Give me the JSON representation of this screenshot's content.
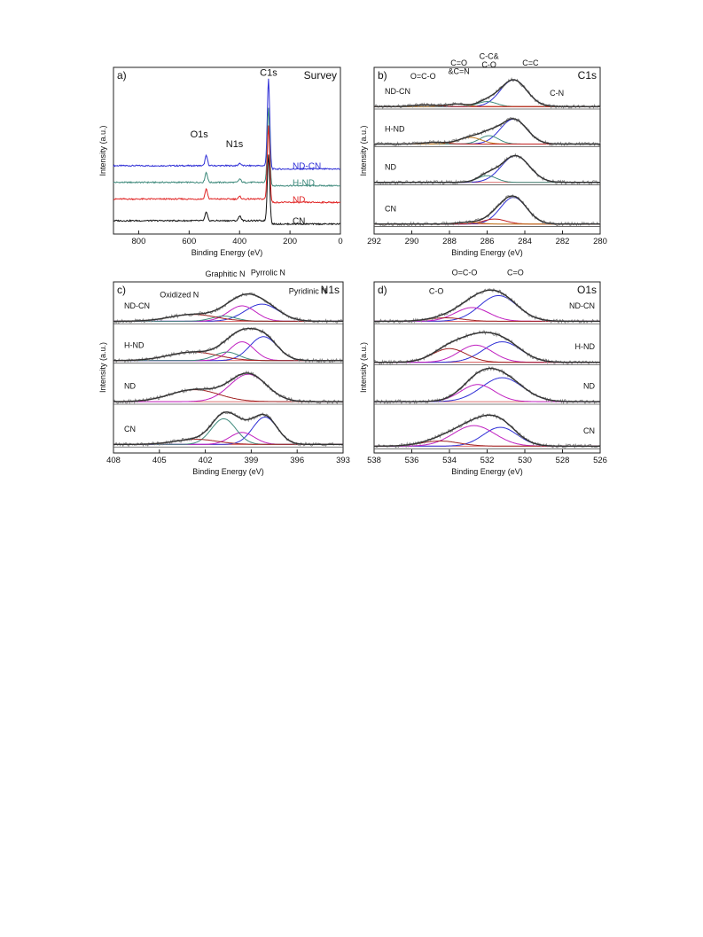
{
  "chart_data": [
    {
      "id": "a",
      "type": "line",
      "panel_label": "a)",
      "title": "Survey",
      "xlabel": "Binding Energy (eV)",
      "ylabel": "Intensity (a.u.)",
      "xlim": [
        900,
        0
      ],
      "x_ticks": [
        "800",
        "600",
        "400",
        "200",
        "0"
      ],
      "x_tick_values": [
        800,
        600,
        400,
        200,
        0
      ],
      "ylim": [
        0,
        1
      ],
      "peak_labels": [
        {
          "text": "C1s",
          "x": 285,
          "y": 0.95
        },
        {
          "text": "O1s",
          "x": 560,
          "y": 0.58
        },
        {
          "text": "N1s",
          "x": 420,
          "y": 0.52
        }
      ],
      "series": [
        {
          "name": "ND-CN",
          "color": "#2f2fd6",
          "baseline": 0.41,
          "slope": 0.012,
          "peaks": [
            {
              "x": 532,
              "h": 0.06,
              "w": 3
            },
            {
              "x": 399,
              "h": 0.015,
              "w": 3
            },
            {
              "x": 285,
              "h": 0.52,
              "w": 3
            }
          ],
          "label_x": 190,
          "label_y": 0.39
        },
        {
          "name": "H-ND",
          "color": "#3f8a7c",
          "baseline": 0.31,
          "slope": 0.012,
          "peaks": [
            {
              "x": 532,
              "h": 0.06,
              "w": 3
            },
            {
              "x": 399,
              "h": 0.02,
              "w": 3
            },
            {
              "x": 285,
              "h": 0.45,
              "w": 3
            }
          ],
          "label_x": 190,
          "label_y": 0.29
        },
        {
          "name": "ND",
          "color": "#e02424",
          "baseline": 0.21,
          "slope": 0.012,
          "peaks": [
            {
              "x": 532,
              "h": 0.06,
              "w": 3
            },
            {
              "x": 399,
              "h": 0.015,
              "w": 3
            },
            {
              "x": 285,
              "h": 0.44,
              "w": 3
            }
          ],
          "label_x": 190,
          "label_y": 0.19
        },
        {
          "name": "CN",
          "color": "#111111",
          "baseline": 0.08,
          "slope": 0.012,
          "peaks": [
            {
              "x": 532,
              "h": 0.05,
              "w": 3
            },
            {
              "x": 399,
              "h": 0.03,
              "w": 3
            },
            {
              "x": 285,
              "h": 0.4,
              "w": 3
            }
          ],
          "label_x": 190,
          "label_y": 0.06
        }
      ]
    },
    {
      "id": "b",
      "type": "line",
      "panel_label": "b)",
      "title": "C1s",
      "xlabel": "Binding Energy (eV)",
      "ylabel": "Intensity (a.u.)",
      "xlim": [
        292,
        280
      ],
      "x_ticks": [
        "292",
        "290",
        "288",
        "286",
        "284",
        "282",
        "280"
      ],
      "x_tick_values": [
        292,
        290,
        288,
        286,
        284,
        282,
        280
      ],
      "ylim": [
        0,
        1
      ],
      "peak_labels": [
        {
          "text": "O=C-O",
          "x": 289.4,
          "y": 0.93
        },
        {
          "text": "C=O",
          "x": 287.5,
          "y": 1.01
        },
        {
          "text": "&C=N",
          "x": 287.5,
          "y": 0.96
        },
        {
          "text": "C-C&",
          "x": 285.9,
          "y": 1.05
        },
        {
          "text": "C-O",
          "x": 285.9,
          "y": 1.0
        },
        {
          "text": "C=C",
          "x": 283.7,
          "y": 1.01
        },
        {
          "text": "C-N",
          "x": 282.3,
          "y": 0.83
        }
      ],
      "series": [
        {
          "name": "ND-CN",
          "baseline": 0.765,
          "components": [
            {
              "x": 284.6,
              "h": 0.16,
              "w": 0.7,
              "color": "#2f2fd6"
            },
            {
              "x": 286.0,
              "h": 0.03,
              "w": 0.5,
              "color": "#3f8a7c"
            },
            {
              "x": 287.6,
              "h": 0.015,
              "w": 0.5,
              "color": "#c07a20"
            },
            {
              "x": 289.3,
              "h": 0.01,
              "w": 0.6,
              "color": "#c02020"
            }
          ]
        },
        {
          "name": "H-ND",
          "baseline": 0.54,
          "components": [
            {
              "x": 284.6,
              "h": 0.15,
              "w": 0.7,
              "color": "#2f2fd6"
            },
            {
              "x": 285.9,
              "h": 0.05,
              "w": 0.5,
              "color": "#3f8a7c"
            },
            {
              "x": 286.9,
              "h": 0.04,
              "w": 0.6,
              "color": "#c07a20"
            },
            {
              "x": 288.8,
              "h": 0.01,
              "w": 0.6,
              "color": "#c02020"
            }
          ]
        },
        {
          "name": "ND",
          "baseline": 0.31,
          "components": [
            {
              "x": 284.5,
              "h": 0.16,
              "w": 0.75,
              "color": "#2f2fd6"
            },
            {
              "x": 286.0,
              "h": 0.04,
              "w": 0.5,
              "color": "#3f8a7c"
            }
          ]
        },
        {
          "name": "CN",
          "baseline": 0.06,
          "components": [
            {
              "x": 284.6,
              "h": 0.16,
              "w": 0.7,
              "color": "#2f2fd6"
            },
            {
              "x": 285.6,
              "h": 0.03,
              "w": 0.6,
              "color": "#c02020"
            },
            {
              "x": 287.0,
              "h": 0.01,
              "w": 0.6,
              "color": "#c07a20"
            }
          ]
        }
      ]
    },
    {
      "id": "c",
      "type": "line",
      "panel_label": "c)",
      "title": "N1s",
      "xlabel": "Binding Energy (eV)",
      "ylabel": "Intensity (a.u.)",
      "xlim": [
        408,
        393
      ],
      "x_ticks": [
        "408",
        "405",
        "402",
        "399",
        "396",
        "393"
      ],
      "x_tick_values": [
        408,
        405,
        402,
        399,
        396,
        393
      ],
      "ylim": [
        0,
        1
      ],
      "peak_labels": [
        {
          "text": "Oxidized N",
          "x": 403.7,
          "y": 0.91
        },
        {
          "text": "Graphitic N",
          "x": 400.7,
          "y": 1.03
        },
        {
          "text": "Pyrrolic N",
          "x": 397.9,
          "y": 1.04
        },
        {
          "text": "Pyridinic N",
          "x": 395.3,
          "y": 0.93
        }
      ],
      "series": [
        {
          "name": "ND-CN",
          "baseline": 0.77,
          "components": [
            {
              "x": 398.3,
              "h": 0.1,
              "w": 1.1,
              "color": "#2f2fd6"
            },
            {
              "x": 399.6,
              "h": 0.09,
              "w": 0.9,
              "color": "#c020c0"
            },
            {
              "x": 400.8,
              "h": 0.03,
              "w": 0.8,
              "color": "#3f8a7c"
            },
            {
              "x": 402.8,
              "h": 0.04,
              "w": 1.5,
              "color": "#a02020"
            }
          ]
        },
        {
          "name": "H-ND",
          "baseline": 0.54,
          "components": [
            {
              "x": 398.2,
              "h": 0.14,
              "w": 0.9,
              "color": "#2f2fd6"
            },
            {
              "x": 399.6,
              "h": 0.11,
              "w": 0.8,
              "color": "#c020c0"
            },
            {
              "x": 400.6,
              "h": 0.05,
              "w": 0.8,
              "color": "#3f8a7c"
            },
            {
              "x": 402.8,
              "h": 0.05,
              "w": 1.6,
              "color": "#a02020"
            }
          ]
        },
        {
          "name": "ND",
          "baseline": 0.3,
          "components": [
            {
              "x": 399.2,
              "h": 0.16,
              "w": 1.2,
              "color": "#c020c0"
            },
            {
              "x": 402.7,
              "h": 0.07,
              "w": 1.6,
              "color": "#a02020"
            }
          ]
        },
        {
          "name": "CN",
          "baseline": 0.05,
          "components": [
            {
              "x": 398.1,
              "h": 0.16,
              "w": 0.8,
              "color": "#2f2fd6"
            },
            {
              "x": 399.6,
              "h": 0.07,
              "w": 0.8,
              "color": "#c020c0"
            },
            {
              "x": 400.8,
              "h": 0.15,
              "w": 0.8,
              "color": "#3f8a7c"
            },
            {
              "x": 402.6,
              "h": 0.03,
              "w": 1.4,
              "color": "#a02020"
            }
          ]
        }
      ]
    },
    {
      "id": "d",
      "type": "line",
      "panel_label": "d)",
      "title": "O1s",
      "xlabel": "Binding Energy (eV)",
      "ylabel": "Intensity (a.u.)",
      "xlim": [
        538,
        526
      ],
      "x_ticks": [
        "538",
        "536",
        "534",
        "532",
        "530",
        "528",
        "526"
      ],
      "x_tick_values": [
        538,
        536,
        534,
        532,
        530,
        528,
        526
      ],
      "ylim": [
        0,
        1
      ],
      "peak_labels": [
        {
          "text": "C-O",
          "x": 534.7,
          "y": 0.93
        },
        {
          "text": "O=C-O",
          "x": 533.2,
          "y": 1.04
        },
        {
          "text": "C=O",
          "x": 530.5,
          "y": 1.04
        }
      ],
      "series": [
        {
          "name": "ND-CN",
          "baseline": 0.77,
          "components": [
            {
              "x": 531.4,
              "h": 0.15,
              "w": 1.0,
              "color": "#2f2fd6"
            },
            {
              "x": 532.8,
              "h": 0.08,
              "w": 0.9,
              "color": "#c020c0"
            },
            {
              "x": 534.2,
              "h": 0.02,
              "w": 0.9,
              "color": "#a02020"
            }
          ]
        },
        {
          "name": "H-ND",
          "baseline": 0.53,
          "components": [
            {
              "x": 531.2,
              "h": 0.12,
              "w": 1.0,
              "color": "#2f2fd6"
            },
            {
              "x": 532.6,
              "h": 0.1,
              "w": 0.9,
              "color": "#c020c0"
            },
            {
              "x": 534.0,
              "h": 0.08,
              "w": 0.9,
              "color": "#a02020"
            }
          ]
        },
        {
          "name": "ND",
          "baseline": 0.3,
          "components": [
            {
              "x": 531.2,
              "h": 0.14,
              "w": 1.1,
              "color": "#2f2fd6"
            },
            {
              "x": 532.5,
              "h": 0.1,
              "w": 0.9,
              "color": "#c020c0"
            }
          ]
        },
        {
          "name": "CN",
          "baseline": 0.04,
          "components": [
            {
              "x": 531.3,
              "h": 0.11,
              "w": 0.9,
              "color": "#2f2fd6"
            },
            {
              "x": 532.7,
              "h": 0.12,
              "w": 1.1,
              "color": "#c020c0"
            },
            {
              "x": 534.5,
              "h": 0.03,
              "w": 1.0,
              "color": "#a02020"
            }
          ]
        }
      ]
    }
  ],
  "colors": {
    "axis": "#222222",
    "envelope": "#333333",
    "raw": "#8a8a8a",
    "baseline": "#d04040"
  }
}
